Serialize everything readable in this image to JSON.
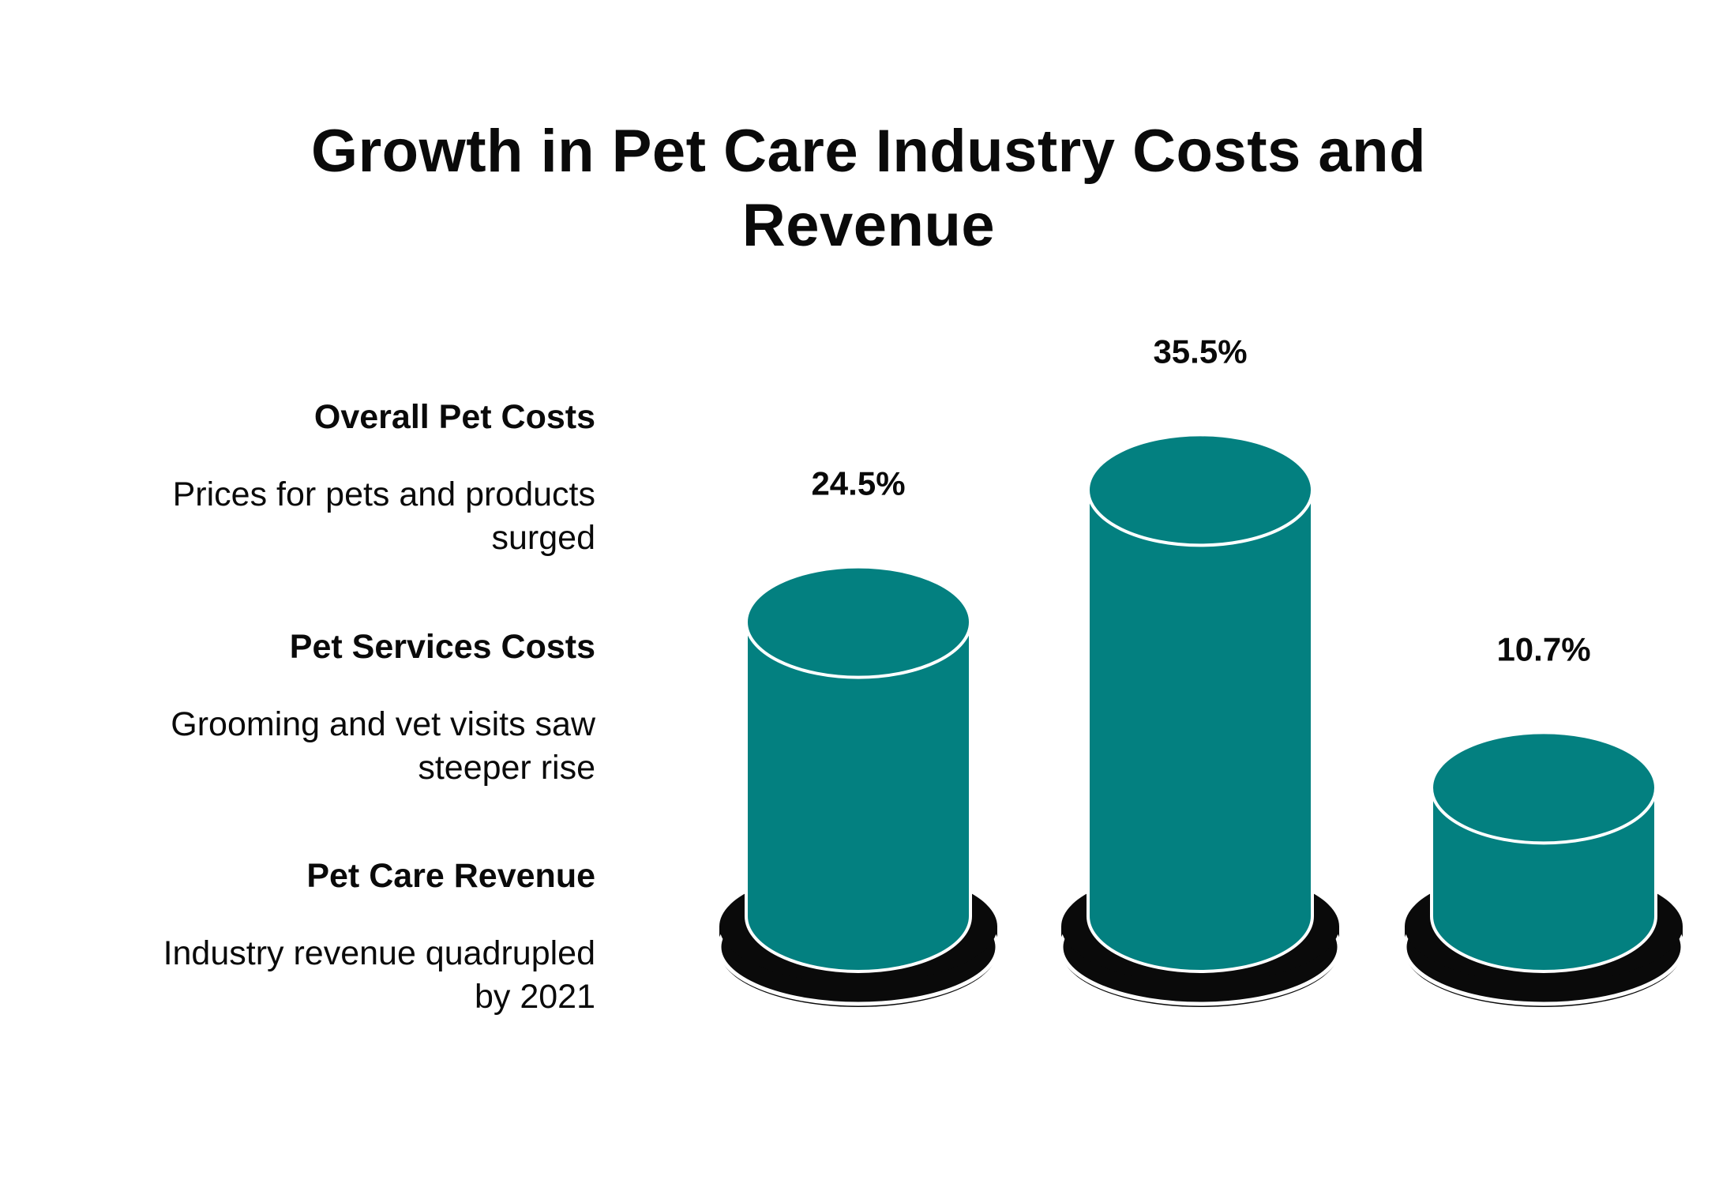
{
  "chart_data": {
    "type": "bar",
    "title": "Growth in Pet Care Industry Costs and Revenue",
    "title_lines": [
      "Growth in Pet Care Industry Costs and",
      "Revenue"
    ],
    "categories": [
      "Overall Pet Costs",
      "Pet Services Costs",
      "Pet Care Revenue"
    ],
    "values": [
      24.5,
      35.5,
      10.7
    ],
    "value_labels": [
      "24.5%",
      "35.5%",
      "10.7%"
    ],
    "unit": "%",
    "descriptions": [
      [
        "Prices for pets and products",
        "surged"
      ],
      [
        "Grooming and vet visits saw",
        "steeper rise"
      ],
      [
        "Industry revenue quadrupled",
        "by 2021"
      ]
    ],
    "xlabel": "",
    "ylabel": "",
    "grid": false,
    "legend": "left"
  },
  "colors": {
    "bar_fill": "#038080",
    "bar_outline": "#ffffff",
    "base": "#0a0a0a",
    "text": "#0a0a0a",
    "background": "#ffffff"
  }
}
